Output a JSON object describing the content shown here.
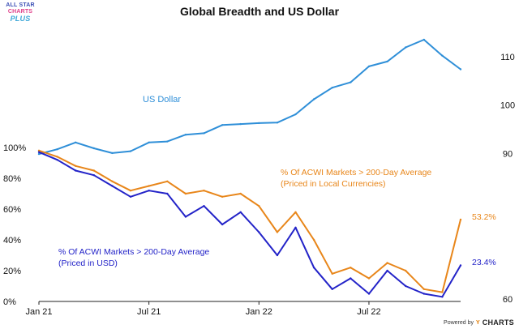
{
  "logo": {
    "line1": "ALL STAR",
    "line2": "CHARTS",
    "line3": "PLUS"
  },
  "footer": {
    "powered_by": "Powered by",
    "brand_mark": "Y",
    "brand": "CHARTS"
  },
  "chart_data": {
    "type": "line",
    "title": "Global Breadth and US Dollar",
    "x_ticks": [
      "Jan 21",
      "Jul 21",
      "Jan 22",
      "Jul 22"
    ],
    "x_tick_dates": [
      "2021-01",
      "2021-07",
      "2022-01",
      "2022-07"
    ],
    "x_range": [
      "2021-01",
      "2022-12"
    ],
    "left_axis": {
      "ticks": [
        "0%",
        "20%",
        "40%",
        "60%",
        "80%",
        "100%"
      ],
      "tick_values": [
        0,
        20,
        40,
        60,
        80,
        100
      ],
      "ylim": [
        0,
        100
      ]
    },
    "right_axis": {
      "ticks": [
        "60",
        "90",
        "100",
        "110"
      ],
      "tick_values": [
        60,
        90,
        100,
        110
      ],
      "ylim": [
        60,
        115
      ]
    },
    "series": [
      {
        "name": "US Dollar",
        "label": "US Dollar",
        "axis": "right",
        "color": "#2f8fd8",
        "x": [
          0,
          1,
          2,
          3,
          4,
          5,
          6,
          7,
          8,
          9,
          10,
          11,
          12,
          13,
          14,
          15,
          16,
          17,
          18,
          19,
          20,
          21,
          22,
          23
        ],
        "values": [
          89.9,
          90.9,
          92.3,
          91.1,
          90.1,
          90.5,
          92.3,
          92.5,
          93.9,
          94.2,
          95.9,
          96.1,
          96.3,
          96.4,
          98.1,
          101.2,
          103.6,
          104.7,
          108.0,
          109.0,
          111.9,
          113.5,
          110.2,
          107.4
        ],
        "end_label": ""
      },
      {
        "name": "% Of ACWI Markets > 200-Day Average (Priced in Local Currencies)",
        "label_lines": [
          "% Of ACWI Markets > 200-Day Average",
          "(Priced in Local Currencies)"
        ],
        "axis": "left",
        "color": "#e8861a",
        "x": [
          0,
          1,
          2,
          3,
          4,
          5,
          6,
          7,
          8,
          9,
          10,
          11,
          12,
          13,
          14,
          15,
          16,
          17,
          18,
          19,
          20,
          21,
          22,
          23
        ],
        "values": [
          98,
          94,
          88,
          85,
          78,
          72,
          75,
          78,
          70,
          72,
          68,
          70,
          62,
          45,
          58,
          40,
          18,
          22,
          15,
          25,
          20,
          8,
          6,
          53.2
        ],
        "end_label": "53.2%"
      },
      {
        "name": "% Of ACWI Markets > 200-Day Average (Priced in USD)",
        "label_lines": [
          "% Of ACWI Markets > 200-Day Average",
          "(Priced in USD)"
        ],
        "axis": "left",
        "color": "#2323c8",
        "x": [
          0,
          1,
          2,
          3,
          4,
          5,
          6,
          7,
          8,
          9,
          10,
          11,
          12,
          13,
          14,
          15,
          16,
          17,
          18,
          19,
          20,
          21,
          22,
          23
        ],
        "values": [
          97,
          92,
          85,
          82,
          75,
          68,
          72,
          70,
          55,
          62,
          50,
          58,
          45,
          30,
          48,
          22,
          8,
          15,
          5,
          20,
          10,
          5,
          3,
          23.4
        ],
        "end_label": "23.4%"
      }
    ]
  }
}
